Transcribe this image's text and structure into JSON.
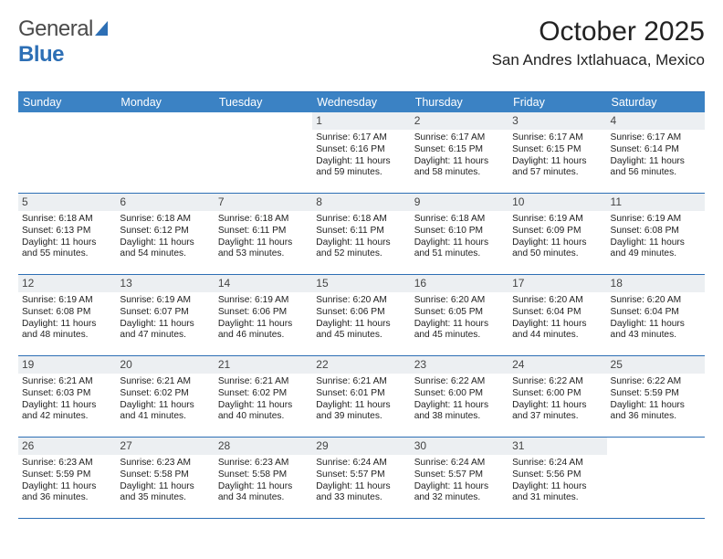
{
  "logo": {
    "text1": "General",
    "text2": "Blue"
  },
  "header": {
    "month": "October 2025",
    "location": "San Andres Ixtlahuaca, Mexico"
  },
  "colors": {
    "accent": "#2d6fb5",
    "dow_bg": "#3b82c4",
    "dow_fg": "#ffffff",
    "daynum_bg": "#eceff2",
    "border": "#2d6fb5"
  },
  "calendar": {
    "days_of_week": [
      "Sunday",
      "Monday",
      "Tuesday",
      "Wednesday",
      "Thursday",
      "Friday",
      "Saturday"
    ],
    "weeks": [
      [
        null,
        null,
        null,
        {
          "n": "1",
          "sunrise": "6:17 AM",
          "sunset": "6:16 PM",
          "daylight": "11 hours and 59 minutes."
        },
        {
          "n": "2",
          "sunrise": "6:17 AM",
          "sunset": "6:15 PM",
          "daylight": "11 hours and 58 minutes."
        },
        {
          "n": "3",
          "sunrise": "6:17 AM",
          "sunset": "6:15 PM",
          "daylight": "11 hours and 57 minutes."
        },
        {
          "n": "4",
          "sunrise": "6:17 AM",
          "sunset": "6:14 PM",
          "daylight": "11 hours and 56 minutes."
        }
      ],
      [
        {
          "n": "5",
          "sunrise": "6:18 AM",
          "sunset": "6:13 PM",
          "daylight": "11 hours and 55 minutes."
        },
        {
          "n": "6",
          "sunrise": "6:18 AM",
          "sunset": "6:12 PM",
          "daylight": "11 hours and 54 minutes."
        },
        {
          "n": "7",
          "sunrise": "6:18 AM",
          "sunset": "6:11 PM",
          "daylight": "11 hours and 53 minutes."
        },
        {
          "n": "8",
          "sunrise": "6:18 AM",
          "sunset": "6:11 PM",
          "daylight": "11 hours and 52 minutes."
        },
        {
          "n": "9",
          "sunrise": "6:18 AM",
          "sunset": "6:10 PM",
          "daylight": "11 hours and 51 minutes."
        },
        {
          "n": "10",
          "sunrise": "6:19 AM",
          "sunset": "6:09 PM",
          "daylight": "11 hours and 50 minutes."
        },
        {
          "n": "11",
          "sunrise": "6:19 AM",
          "sunset": "6:08 PM",
          "daylight": "11 hours and 49 minutes."
        }
      ],
      [
        {
          "n": "12",
          "sunrise": "6:19 AM",
          "sunset": "6:08 PM",
          "daylight": "11 hours and 48 minutes."
        },
        {
          "n": "13",
          "sunrise": "6:19 AM",
          "sunset": "6:07 PM",
          "daylight": "11 hours and 47 minutes."
        },
        {
          "n": "14",
          "sunrise": "6:19 AM",
          "sunset": "6:06 PM",
          "daylight": "11 hours and 46 minutes."
        },
        {
          "n": "15",
          "sunrise": "6:20 AM",
          "sunset": "6:06 PM",
          "daylight": "11 hours and 45 minutes."
        },
        {
          "n": "16",
          "sunrise": "6:20 AM",
          "sunset": "6:05 PM",
          "daylight": "11 hours and 45 minutes."
        },
        {
          "n": "17",
          "sunrise": "6:20 AM",
          "sunset": "6:04 PM",
          "daylight": "11 hours and 44 minutes."
        },
        {
          "n": "18",
          "sunrise": "6:20 AM",
          "sunset": "6:04 PM",
          "daylight": "11 hours and 43 minutes."
        }
      ],
      [
        {
          "n": "19",
          "sunrise": "6:21 AM",
          "sunset": "6:03 PM",
          "daylight": "11 hours and 42 minutes."
        },
        {
          "n": "20",
          "sunrise": "6:21 AM",
          "sunset": "6:02 PM",
          "daylight": "11 hours and 41 minutes."
        },
        {
          "n": "21",
          "sunrise": "6:21 AM",
          "sunset": "6:02 PM",
          "daylight": "11 hours and 40 minutes."
        },
        {
          "n": "22",
          "sunrise": "6:21 AM",
          "sunset": "6:01 PM",
          "daylight": "11 hours and 39 minutes."
        },
        {
          "n": "23",
          "sunrise": "6:22 AM",
          "sunset": "6:00 PM",
          "daylight": "11 hours and 38 minutes."
        },
        {
          "n": "24",
          "sunrise": "6:22 AM",
          "sunset": "6:00 PM",
          "daylight": "11 hours and 37 minutes."
        },
        {
          "n": "25",
          "sunrise": "6:22 AM",
          "sunset": "5:59 PM",
          "daylight": "11 hours and 36 minutes."
        }
      ],
      [
        {
          "n": "26",
          "sunrise": "6:23 AM",
          "sunset": "5:59 PM",
          "daylight": "11 hours and 36 minutes."
        },
        {
          "n": "27",
          "sunrise": "6:23 AM",
          "sunset": "5:58 PM",
          "daylight": "11 hours and 35 minutes."
        },
        {
          "n": "28",
          "sunrise": "6:23 AM",
          "sunset": "5:58 PM",
          "daylight": "11 hours and 34 minutes."
        },
        {
          "n": "29",
          "sunrise": "6:24 AM",
          "sunset": "5:57 PM",
          "daylight": "11 hours and 33 minutes."
        },
        {
          "n": "30",
          "sunrise": "6:24 AM",
          "sunset": "5:57 PM",
          "daylight": "11 hours and 32 minutes."
        },
        {
          "n": "31",
          "sunrise": "6:24 AM",
          "sunset": "5:56 PM",
          "daylight": "11 hours and 31 minutes."
        },
        null
      ]
    ],
    "labels": {
      "sunrise": "Sunrise:",
      "sunset": "Sunset:",
      "daylight": "Daylight:"
    }
  }
}
